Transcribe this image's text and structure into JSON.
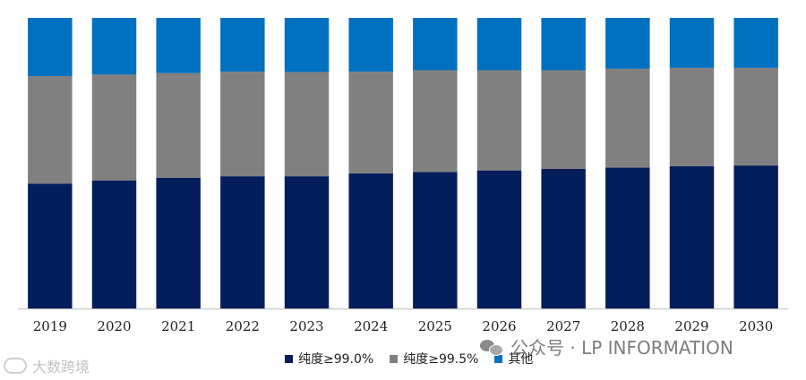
{
  "chart_data": {
    "type": "bar",
    "stacked": true,
    "normalized": true,
    "categories": [
      "2019",
      "2020",
      "2021",
      "2022",
      "2023",
      "2024",
      "2025",
      "2026",
      "2027",
      "2028",
      "2029",
      "2030"
    ],
    "series": [
      {
        "name": "纯度≥99.0%",
        "color": "#041e5c",
        "values": [
          43.0,
          44.0,
          45.0,
          45.5,
          45.5,
          46.5,
          47.0,
          47.5,
          48.0,
          48.5,
          49.0,
          49.2
        ]
      },
      {
        "name": "纯度≥99.5%",
        "color": "#808080",
        "values": [
          37.0,
          36.5,
          36.0,
          36.0,
          35.9,
          35.0,
          35.0,
          34.5,
          34.0,
          34.0,
          33.8,
          33.6
        ]
      },
      {
        "name": "其他",
        "color": "#0070c0",
        "values": [
          20.0,
          19.5,
          19.0,
          18.5,
          18.6,
          18.5,
          18.0,
          18.0,
          18.0,
          17.5,
          17.2,
          17.2
        ]
      }
    ],
    "ylim": [
      0,
      100
    ],
    "grid": false,
    "legend_position": "bottom"
  },
  "watermark": {
    "text": "公众号 · LP INFORMATION",
    "icon": "wechat-icon"
  },
  "corner_logo": {
    "text": "大数跨境",
    "icon": "logo-mark"
  }
}
